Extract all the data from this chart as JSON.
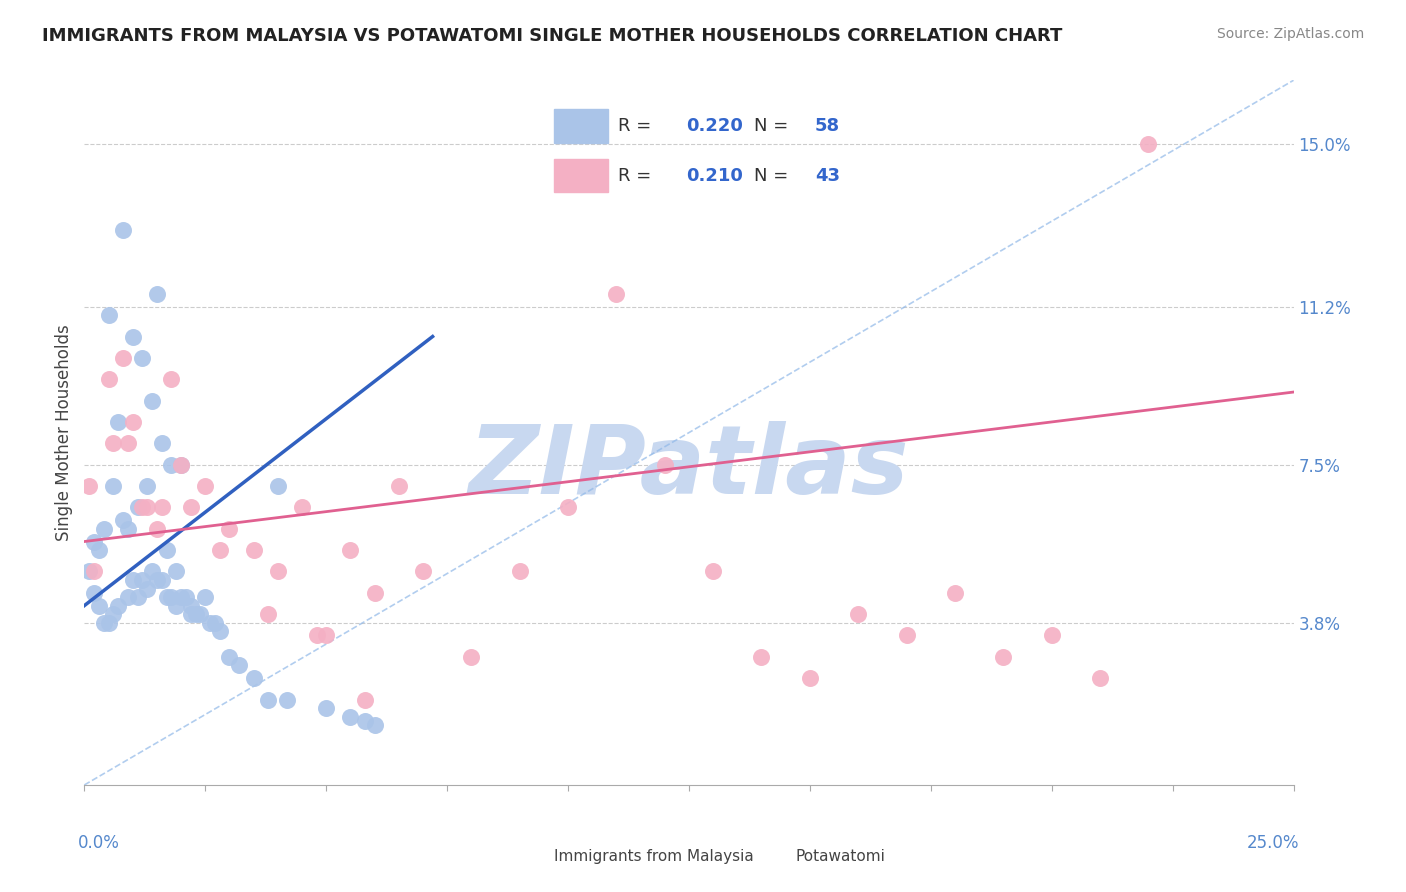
{
  "title": "IMMIGRANTS FROM MALAYSIA VS POTAWATOMI SINGLE MOTHER HOUSEHOLDS CORRELATION CHART",
  "source": "Source: ZipAtlas.com",
  "ylabel": "Single Mother Households",
  "ytick_labels": [
    "15.0%",
    "11.2%",
    "7.5%",
    "3.8%"
  ],
  "ytick_values": [
    0.15,
    0.112,
    0.075,
    0.038
  ],
  "xlim": [
    0.0,
    0.25
  ],
  "ylim": [
    0.0,
    0.165
  ],
  "legend_blue_r": "0.220",
  "legend_blue_n": "58",
  "legend_pink_r": "0.210",
  "legend_pink_n": "43",
  "blue_color": "#aac4e8",
  "pink_color": "#f4b0c4",
  "blue_line_color": "#3060c0",
  "pink_line_color": "#e06090",
  "dashed_line_color": "#90b8e8",
  "watermark": "ZIPatlas",
  "watermark_color": "#c8d8f0",
  "legend_text_color": "#3366cc",
  "blue_scatter_x": [
    0.001,
    0.002,
    0.002,
    0.003,
    0.003,
    0.004,
    0.004,
    0.005,
    0.005,
    0.006,
    0.006,
    0.007,
    0.007,
    0.008,
    0.008,
    0.009,
    0.009,
    0.01,
    0.01,
    0.011,
    0.011,
    0.012,
    0.012,
    0.013,
    0.013,
    0.014,
    0.014,
    0.015,
    0.015,
    0.016,
    0.016,
    0.017,
    0.017,
    0.018,
    0.018,
    0.019,
    0.019,
    0.02,
    0.02,
    0.021,
    0.022,
    0.022,
    0.023,
    0.024,
    0.025,
    0.026,
    0.027,
    0.028,
    0.03,
    0.032,
    0.035,
    0.038,
    0.04,
    0.042,
    0.05,
    0.055,
    0.058,
    0.06
  ],
  "blue_scatter_y": [
    0.05,
    0.057,
    0.045,
    0.055,
    0.042,
    0.06,
    0.038,
    0.11,
    0.038,
    0.07,
    0.04,
    0.085,
    0.042,
    0.13,
    0.062,
    0.06,
    0.044,
    0.105,
    0.048,
    0.065,
    0.044,
    0.1,
    0.048,
    0.07,
    0.046,
    0.09,
    0.05,
    0.115,
    0.048,
    0.08,
    0.048,
    0.055,
    0.044,
    0.075,
    0.044,
    0.05,
    0.042,
    0.075,
    0.044,
    0.044,
    0.04,
    0.042,
    0.04,
    0.04,
    0.044,
    0.038,
    0.038,
    0.036,
    0.03,
    0.028,
    0.025,
    0.02,
    0.07,
    0.02,
    0.018,
    0.016,
    0.015,
    0.014
  ],
  "pink_scatter_x": [
    0.001,
    0.005,
    0.008,
    0.01,
    0.012,
    0.015,
    0.018,
    0.02,
    0.025,
    0.03,
    0.035,
    0.04,
    0.045,
    0.05,
    0.055,
    0.06,
    0.065,
    0.07,
    0.08,
    0.09,
    0.1,
    0.11,
    0.12,
    0.13,
    0.14,
    0.15,
    0.16,
    0.17,
    0.18,
    0.19,
    0.2,
    0.21,
    0.22,
    0.002,
    0.006,
    0.009,
    0.013,
    0.016,
    0.022,
    0.028,
    0.038,
    0.048,
    0.058
  ],
  "pink_scatter_y": [
    0.07,
    0.095,
    0.1,
    0.085,
    0.065,
    0.06,
    0.095,
    0.075,
    0.07,
    0.06,
    0.055,
    0.05,
    0.065,
    0.035,
    0.055,
    0.045,
    0.07,
    0.05,
    0.03,
    0.05,
    0.065,
    0.115,
    0.075,
    0.05,
    0.03,
    0.025,
    0.04,
    0.035,
    0.045,
    0.03,
    0.035,
    0.025,
    0.15,
    0.05,
    0.08,
    0.08,
    0.065,
    0.065,
    0.065,
    0.055,
    0.04,
    0.035,
    0.02
  ],
  "blue_trendline_x": [
    0.0,
    0.072
  ],
  "blue_trendline_y": [
    0.042,
    0.105
  ],
  "pink_trendline_x": [
    0.0,
    0.25
  ],
  "pink_trendline_y": [
    0.057,
    0.092
  ],
  "dashed_line_x": [
    0.0,
    0.25
  ],
  "dashed_line_y": [
    0.0,
    0.165
  ],
  "xtick_positions": [
    0.0,
    0.025,
    0.05,
    0.075,
    0.1,
    0.125,
    0.15,
    0.175,
    0.2,
    0.225,
    0.25
  ],
  "bottom_legend_labels": [
    "Immigrants from Malaysia",
    "Potawatomi"
  ]
}
